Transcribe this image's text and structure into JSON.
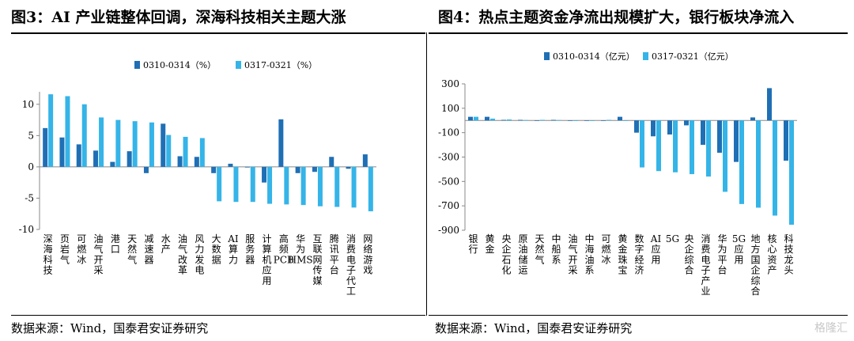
{
  "colors": {
    "series1": "#1f6fb5",
    "series2": "#35b4e8"
  },
  "left": {
    "title": "图3：AI 产业链整体回调，深海科技相关主题大涨",
    "source": "数据来源：Wind，国泰君安证券研究",
    "chart_data": {
      "type": "bar",
      "categories": [
        "深海科技",
        "页岩气",
        "可燃冰",
        "油气开采",
        "港口",
        "天然气",
        "减速器",
        "水产",
        "油气改革",
        "风力发电",
        "大数据",
        "AI算力",
        "服务器",
        "计算机应用",
        "高频PCB",
        "华为HMS",
        "互联网传媒",
        "腾讯平台",
        "消费电子代工",
        "网络游戏"
      ],
      "series": [
        {
          "name": "0310-0314（%）",
          "values": [
            6.2,
            4.7,
            3.6,
            2.6,
            0.8,
            2.5,
            -1.0,
            6.9,
            1.7,
            1.6,
            -1.0,
            0.5,
            -0.1,
            -2.5,
            7.6,
            -1.0,
            -0.8,
            1.6,
            -0.3,
            2.0
          ]
        },
        {
          "name": "0317-0321（%）",
          "values": [
            11.6,
            11.3,
            10.0,
            7.9,
            7.5,
            7.3,
            7.1,
            5.1,
            4.8,
            4.6,
            -5.5,
            -5.6,
            -5.6,
            -5.9,
            -6.0,
            -6.1,
            -6.3,
            -6.4,
            -6.5,
            -7.1
          ]
        }
      ],
      "ylim": [
        -10,
        12
      ],
      "yticks": [
        -10,
        -5,
        0,
        5,
        10
      ],
      "legend": "top"
    }
  },
  "right": {
    "title": "图4：热点主题资金净流出规模扩大，银行板块净流入",
    "source": "数据来源：Wind，国泰君安证券研究",
    "watermark": "格隆汇",
    "chart_data": {
      "type": "bar",
      "categories": [
        "银行",
        "黄金",
        "央企石化",
        "原油储运",
        "天然气",
        "中船系",
        "油气开采",
        "中海油系",
        "可燃冰",
        "黄金珠宝",
        "数字经济",
        "AI应用",
        "5G",
        "央企综合",
        "消费电子产业",
        "华为平台",
        "5G应用",
        "地方国企综合",
        "核心资产",
        "科技龙头"
      ],
      "series": [
        {
          "name": "0310-0314（亿元）",
          "values": [
            30,
            30,
            5,
            5,
            -3,
            5,
            -3,
            -3,
            -3,
            30,
            -100,
            -130,
            -115,
            -40,
            -200,
            -265,
            -340,
            25,
            265,
            -330
          ]
        },
        {
          "name": "0317-0321（亿元）",
          "values": [
            30,
            15,
            8,
            3,
            5,
            3,
            0,
            0,
            5,
            0,
            -385,
            -415,
            -425,
            -440,
            -460,
            -585,
            -685,
            -715,
            -780,
            -855
          ]
        }
      ],
      "ylim": [
        -900,
        300
      ],
      "yticks": [
        300,
        100,
        -100,
        -300,
        -500,
        -700,
        -900
      ],
      "legend": "top"
    }
  }
}
